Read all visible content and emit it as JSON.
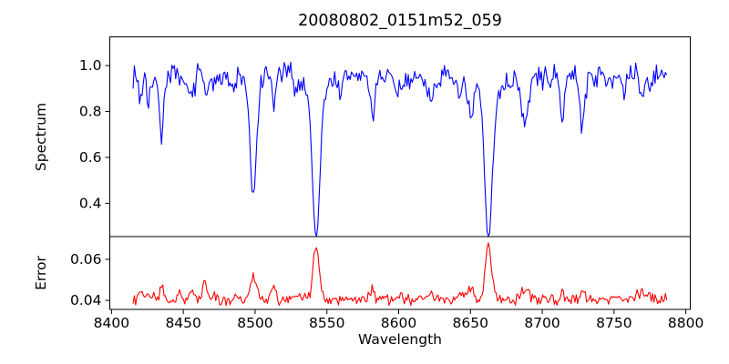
{
  "figure": {
    "title": "20080802_0151m52_059",
    "xlabel": "Wavelength",
    "background_color": "#ffffff",
    "frame_color": "#000000",
    "text_color": "#000000"
  },
  "chart_data": [
    {
      "type": "line",
      "name": "spectrum",
      "ylabel": "Spectrum",
      "line_color": "#0000ff",
      "x_start": 8415,
      "x_end": 8787,
      "x_step": 0.9,
      "xlim": [
        8398.8,
        8803.1
      ],
      "ylim": [
        0.255,
        1.125
      ],
      "yticks": [
        {
          "value": 0.4,
          "label": "0.4"
        },
        {
          "value": 0.6,
          "label": "0.6"
        },
        {
          "value": 0.8,
          "label": "0.8"
        },
        {
          "value": 1.0,
          "label": "1.0"
        }
      ],
      "grid": false,
      "legend": null,
      "baseline": 0.952,
      "noise_amplitude": 0.062,
      "seed": 7,
      "minor_lines_count": 26,
      "minor_depth_range": [
        0.03,
        0.11
      ],
      "minor_width_range": [
        0.7,
        1.5
      ],
      "features": [
        {
          "center": 8435.0,
          "depth": 0.185,
          "width": 1.4
        },
        {
          "center": 8452.0,
          "depth": 0.09,
          "width": 1.2
        },
        {
          "center": 8467.0,
          "depth": 0.11,
          "width": 1.3
        },
        {
          "center": 8483.0,
          "depth": 0.08,
          "width": 1.2
        },
        {
          "center": 8498.5,
          "depth": 0.49,
          "width": 2.0,
          "wing": true
        },
        {
          "center": 8513.0,
          "depth": 0.12,
          "width": 1.2
        },
        {
          "center": 8542.5,
          "depth": 0.655,
          "width": 2.4,
          "wing": true
        },
        {
          "center": 8560.0,
          "depth": 0.09,
          "width": 1.2
        },
        {
          "center": 8581.0,
          "depth": 0.125,
          "width": 1.4
        },
        {
          "center": 8598.0,
          "depth": 0.1,
          "width": 1.2
        },
        {
          "center": 8622.0,
          "depth": 0.115,
          "width": 1.3
        },
        {
          "center": 8648.0,
          "depth": 0.115,
          "width": 1.3
        },
        {
          "center": 8662.5,
          "depth": 0.635,
          "width": 2.3,
          "wing": true
        },
        {
          "center": 8688.0,
          "depth": 0.175,
          "width": 1.5
        },
        {
          "center": 8713.0,
          "depth": 0.12,
          "width": 1.3
        },
        {
          "center": 8728.0,
          "depth": 0.225,
          "width": 1.5
        },
        {
          "center": 8757.0,
          "depth": 0.11,
          "width": 1.3
        }
      ],
      "key_points": [
        {
          "x": 8498.5,
          "y": 0.465,
          "note": "absorption minimum"
        },
        {
          "x": 8542.5,
          "y": 0.305,
          "note": "deepest absorption"
        },
        {
          "x": 8662.5,
          "y": 0.325,
          "note": "absorption minimum"
        },
        {
          "x": 8420,
          "y": 0.95,
          "note": "continuum level ~0.95"
        }
      ]
    },
    {
      "type": "line",
      "name": "error",
      "ylabel": "Error",
      "line_color": "#ff0000",
      "x_start": 8415,
      "x_end": 8787,
      "x_step": 0.9,
      "xlim": [
        8398.8,
        8803.1
      ],
      "ylim": [
        0.0356,
        0.0711
      ],
      "yticks": [
        {
          "value": 0.04,
          "label": "0.04"
        },
        {
          "value": 0.06,
          "label": "0.06"
        }
      ],
      "xticks": [
        {
          "value": 8400,
          "label": "8400"
        },
        {
          "value": 8450,
          "label": "8450"
        },
        {
          "value": 8500,
          "label": "8500"
        },
        {
          "value": 8550,
          "label": "8550"
        },
        {
          "value": 8600,
          "label": "8600"
        },
        {
          "value": 8650,
          "label": "8650"
        },
        {
          "value": 8700,
          "label": "8700"
        },
        {
          "value": 8750,
          "label": "8750"
        },
        {
          "value": 8800,
          "label": "8800"
        }
      ],
      "grid": false,
      "legend": null,
      "baseline": 0.0405,
      "noise_amplitude": 0.0033,
      "seed": 12,
      "minor_bump_factor": 0.04,
      "features": [
        {
          "center": 8435.0,
          "height": 0.004,
          "width": 1.3
        },
        {
          "center": 8465.0,
          "height": 0.009,
          "width": 1.4
        },
        {
          "center": 8498.5,
          "height": 0.0125,
          "width": 1.6
        },
        {
          "center": 8513.0,
          "height": 0.006,
          "width": 1.3
        },
        {
          "center": 8542.5,
          "height": 0.028,
          "width": 2.0
        },
        {
          "center": 8581.0,
          "height": 0.0035,
          "width": 1.3
        },
        {
          "center": 8622.0,
          "height": 0.004,
          "width": 1.3
        },
        {
          "center": 8648.0,
          "height": 0.003,
          "width": 1.3
        },
        {
          "center": 8662.5,
          "height": 0.0285,
          "width": 2.0
        },
        {
          "center": 8688.0,
          "height": 0.003,
          "width": 1.4
        },
        {
          "center": 8728.0,
          "height": 0.005,
          "width": 1.4
        },
        {
          "center": 8766.0,
          "height": 0.004,
          "width": 1.4
        }
      ],
      "key_points": [
        {
          "x": 8542.5,
          "y": 0.0685,
          "note": "error peak"
        },
        {
          "x": 8662.5,
          "y": 0.069,
          "note": "error peak"
        },
        {
          "x": 8420,
          "y": 0.04,
          "note": "error floor ~0.04"
        }
      ]
    }
  ]
}
